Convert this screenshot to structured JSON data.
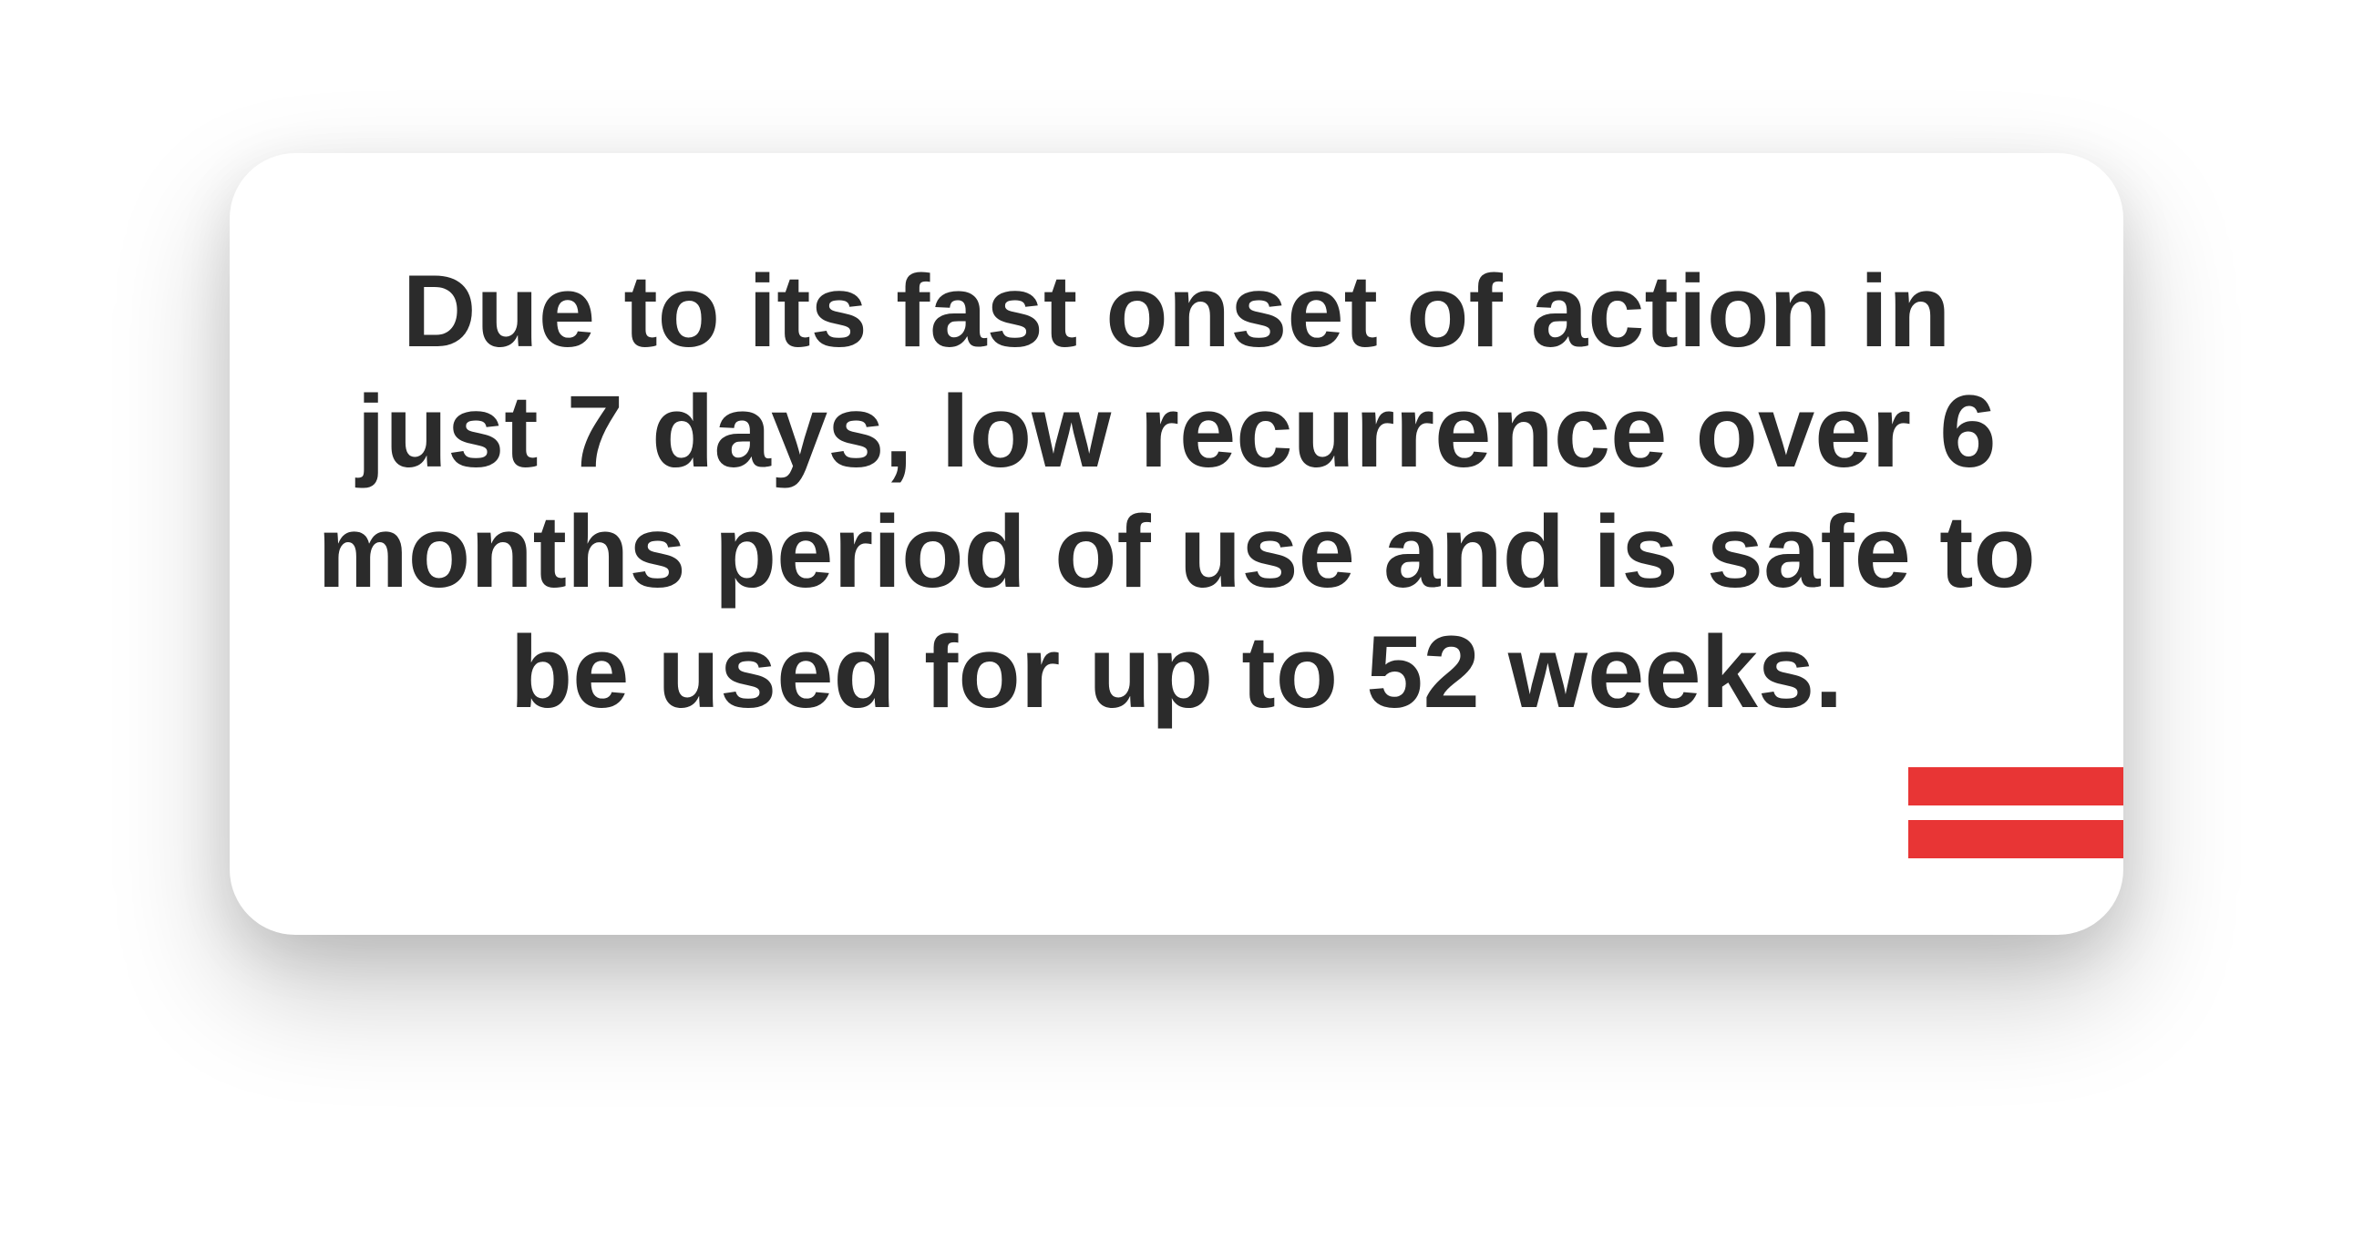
{
  "quote": {
    "lines": [
      "Due to its fast onset of action in",
      "just 7 days, low recurrence over 6",
      "months period of use and is safe to",
      "be used for up to 52 weeks."
    ]
  },
  "colors": {
    "text": "#2b2b2b",
    "accent": "#e83535",
    "card": "#ffffff"
  }
}
